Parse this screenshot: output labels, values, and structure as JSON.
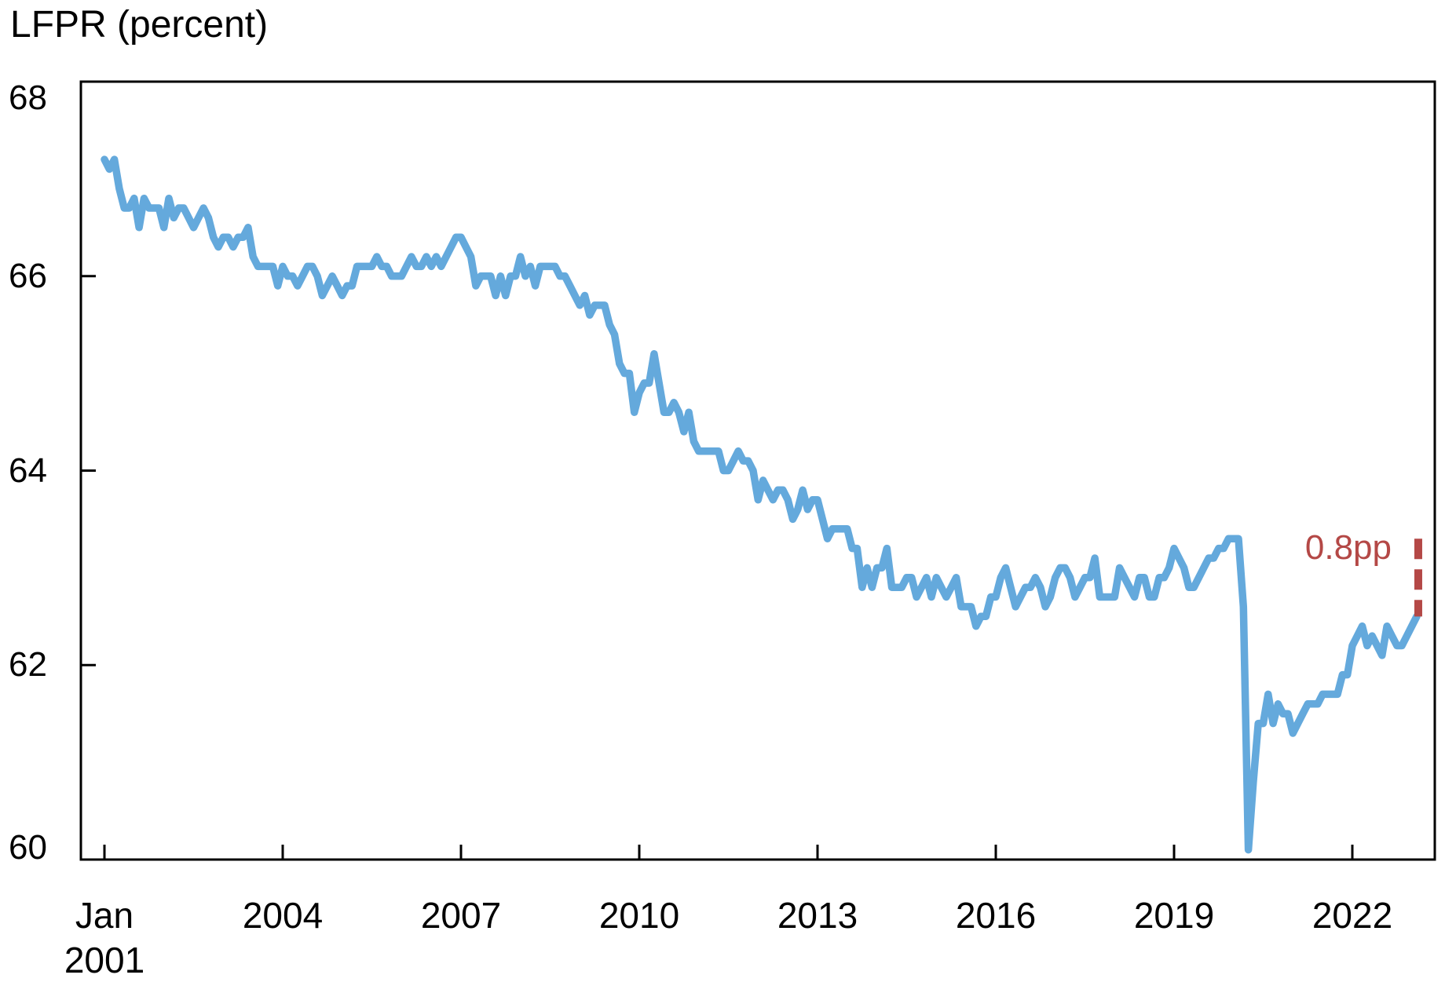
{
  "chart_data": {
    "type": "line",
    "title": "LFPR (percent)",
    "ylabel": "LFPR (percent)",
    "xlabel": "",
    "grid": false,
    "legend": "none",
    "y_axis": {
      "min": 60,
      "max": 68,
      "ticks": [
        68,
        66,
        64,
        62,
        60
      ]
    },
    "x_axis": {
      "ticks": [
        {
          "month_index": 0,
          "label": "Jan",
          "sublabel": "2001"
        },
        {
          "month_index": 36,
          "label": "2004",
          "sublabel": ""
        },
        {
          "month_index": 72,
          "label": "2007",
          "sublabel": ""
        },
        {
          "month_index": 108,
          "label": "2010",
          "sublabel": ""
        },
        {
          "month_index": 144,
          "label": "2013",
          "sublabel": ""
        },
        {
          "month_index": 180,
          "label": "2016",
          "sublabel": ""
        },
        {
          "month_index": 216,
          "label": "2019",
          "sublabel": ""
        },
        {
          "month_index": 252,
          "label": "2022",
          "sublabel": ""
        }
      ]
    },
    "series": [
      {
        "name": "Labor force participation rate",
        "start": "Jan 2001",
        "frequency": "monthly",
        "color": "#64a9dc",
        "values": [
          67.2,
          67.1,
          67.2,
          66.9,
          66.7,
          66.7,
          66.8,
          66.5,
          66.8,
          66.7,
          66.7,
          66.7,
          66.5,
          66.8,
          66.6,
          66.7,
          66.7,
          66.6,
          66.5,
          66.6,
          66.7,
          66.6,
          66.4,
          66.3,
          66.4,
          66.4,
          66.3,
          66.4,
          66.4,
          66.5,
          66.2,
          66.1,
          66.1,
          66.1,
          66.1,
          65.9,
          66.1,
          66.0,
          66.0,
          65.9,
          66.0,
          66.1,
          66.1,
          66.0,
          65.8,
          65.9,
          66.0,
          65.9,
          65.8,
          65.9,
          65.9,
          66.1,
          66.1,
          66.1,
          66.1,
          66.2,
          66.1,
          66.1,
          66.0,
          66.0,
          66.0,
          66.1,
          66.2,
          66.1,
          66.1,
          66.2,
          66.1,
          66.2,
          66.1,
          66.2,
          66.3,
          66.4,
          66.4,
          66.3,
          66.2,
          65.9,
          66.0,
          66.0,
          66.0,
          65.8,
          66.0,
          65.8,
          66.0,
          66.0,
          66.2,
          66.0,
          66.1,
          65.9,
          66.1,
          66.1,
          66.1,
          66.1,
          66.0,
          66.0,
          65.9,
          65.8,
          65.7,
          65.8,
          65.6,
          65.7,
          65.7,
          65.7,
          65.5,
          65.4,
          65.1,
          65.0,
          65.0,
          64.6,
          64.8,
          64.9,
          64.9,
          65.2,
          64.9,
          64.6,
          64.6,
          64.7,
          64.6,
          64.4,
          64.6,
          64.3,
          64.2,
          64.2,
          64.2,
          64.2,
          64.2,
          64.0,
          64.0,
          64.1,
          64.2,
          64.1,
          64.1,
          64.0,
          63.7,
          63.9,
          63.8,
          63.7,
          63.8,
          63.8,
          63.7,
          63.5,
          63.6,
          63.8,
          63.6,
          63.7,
          63.7,
          63.5,
          63.3,
          63.4,
          63.4,
          63.4,
          63.4,
          63.2,
          63.2,
          62.8,
          63.0,
          62.8,
          63.0,
          63.0,
          63.2,
          62.8,
          62.8,
          62.8,
          62.9,
          62.9,
          62.7,
          62.8,
          62.9,
          62.7,
          62.9,
          62.8,
          62.7,
          62.8,
          62.9,
          62.6,
          62.6,
          62.6,
          62.4,
          62.5,
          62.5,
          62.7,
          62.7,
          62.9,
          63.0,
          62.8,
          62.6,
          62.7,
          62.8,
          62.8,
          62.9,
          62.8,
          62.6,
          62.7,
          62.9,
          63.0,
          63.0,
          62.9,
          62.7,
          62.8,
          62.9,
          62.9,
          63.1,
          62.7,
          62.7,
          62.7,
          62.7,
          63.0,
          62.9,
          62.8,
          62.7,
          62.9,
          62.9,
          62.7,
          62.7,
          62.9,
          62.9,
          63.0,
          63.2,
          63.1,
          63.0,
          62.8,
          62.8,
          62.9,
          63.0,
          63.1,
          63.1,
          63.2,
          63.2,
          63.3,
          63.3,
          63.3,
          62.6,
          60.1,
          60.8,
          61.4,
          61.4,
          61.7,
          61.4,
          61.6,
          61.5,
          61.5,
          61.3,
          61.4,
          61.5,
          61.6,
          61.6,
          61.6,
          61.7,
          61.7,
          61.7,
          61.7,
          61.9,
          61.9,
          62.2,
          62.3,
          62.4,
          62.2,
          62.3,
          62.2,
          62.1,
          62.4,
          62.3,
          62.2,
          62.2,
          62.3,
          62.4,
          62.5
        ]
      }
    ],
    "annotation": {
      "label": "0.8pp",
      "from_value": 63.3,
      "to_value": 62.5,
      "color": "#b44846",
      "style": "dashed-vertical-line-at-series-end"
    }
  }
}
